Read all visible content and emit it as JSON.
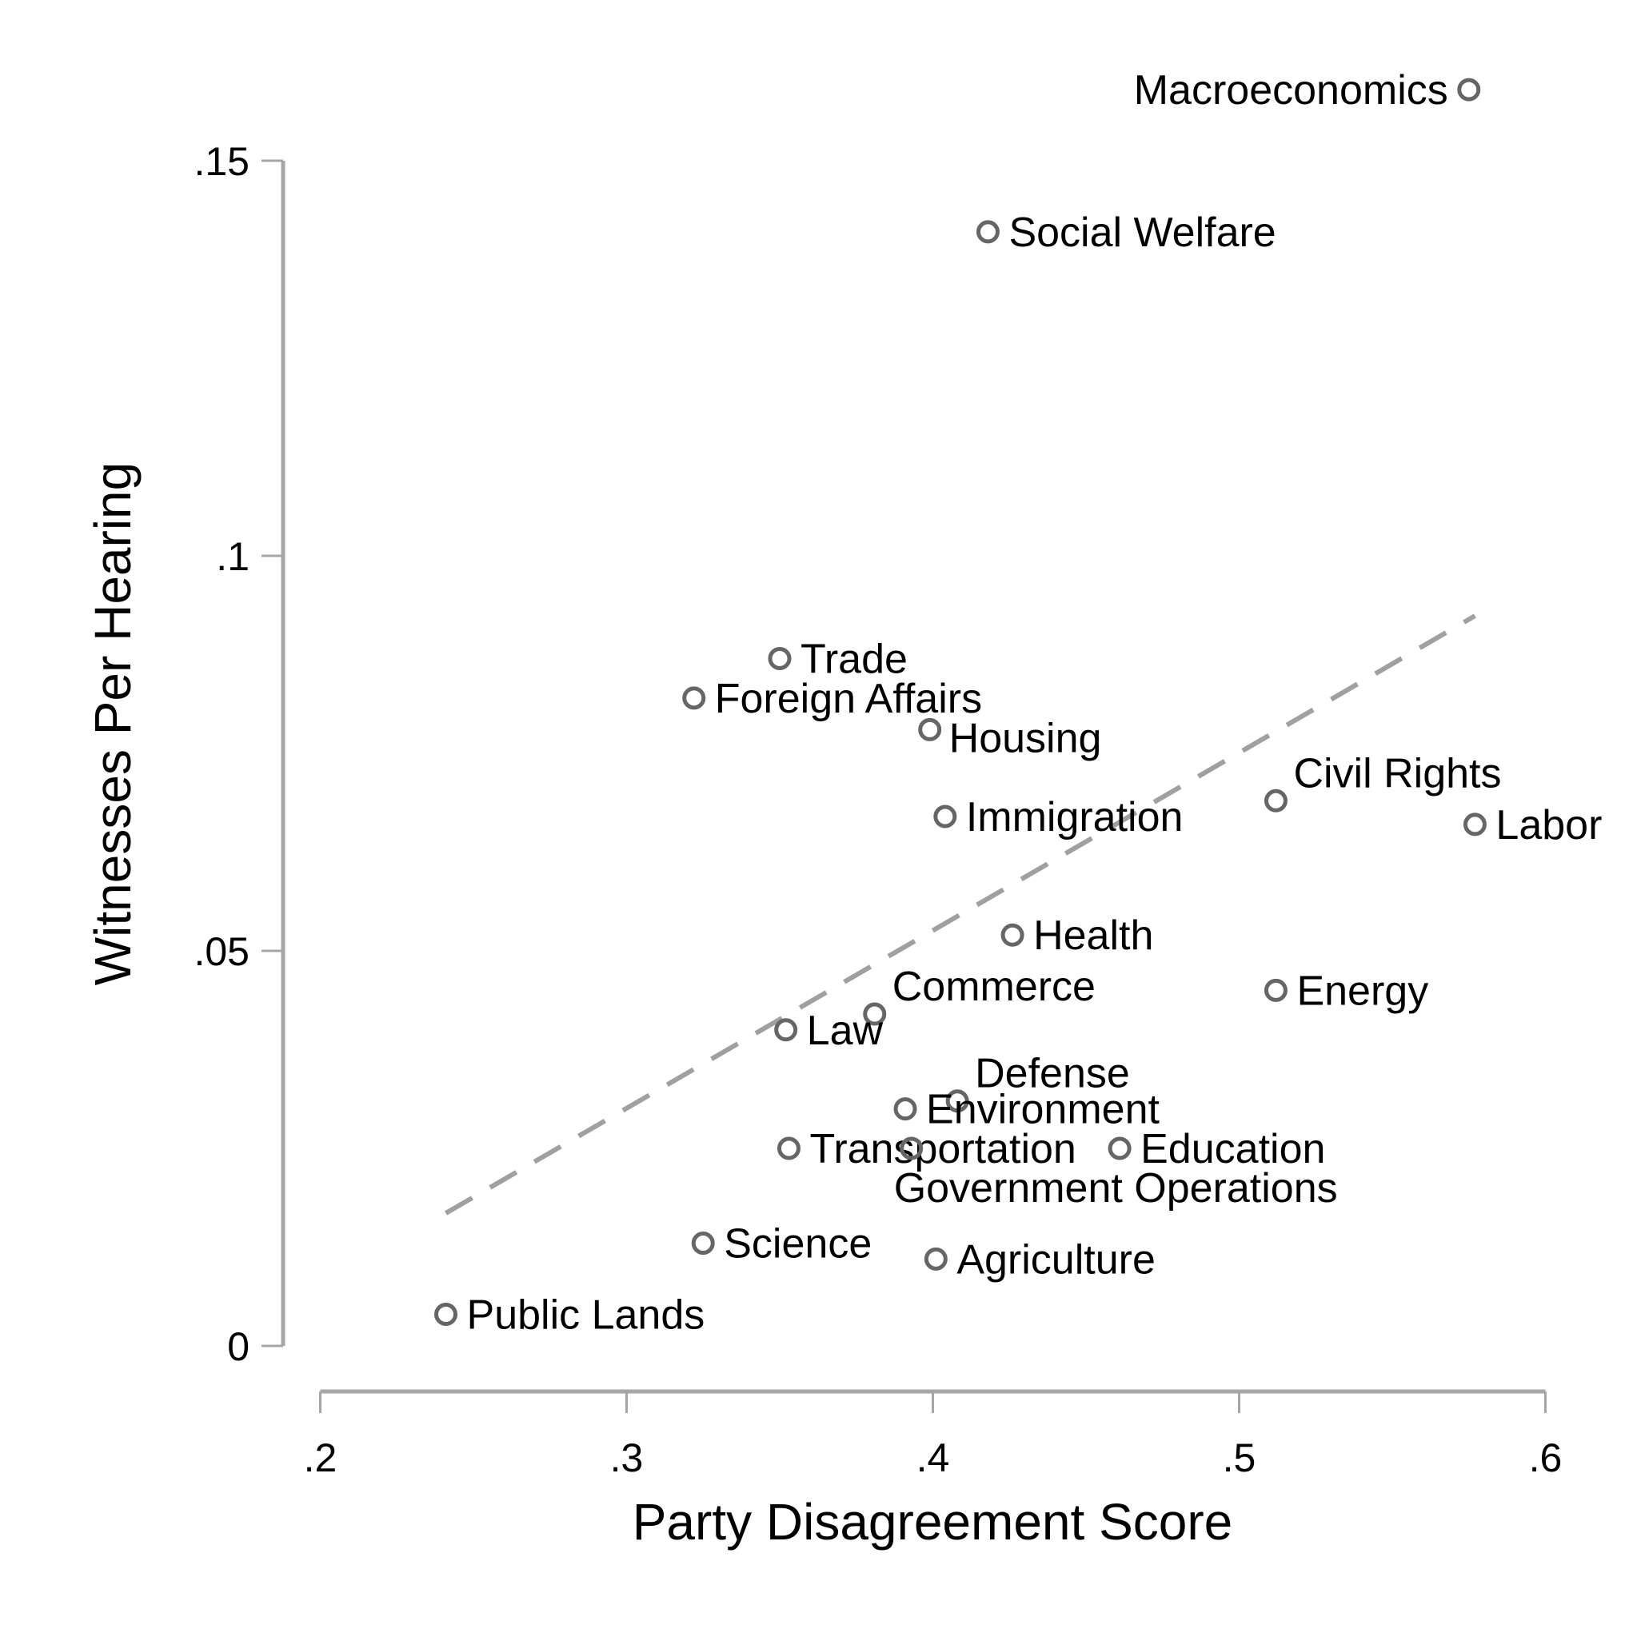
{
  "chart_data": {
    "type": "scatter",
    "title": "",
    "xlabel": "Party Disagreement Score",
    "ylabel": "Witnesses Per Hearing",
    "xlim": [
      0.2,
      0.6
    ],
    "ylim": [
      0,
      0.15
    ],
    "x_ticks": [
      {
        "value": 0.2,
        "label": ".2"
      },
      {
        "value": 0.3,
        "label": ".3"
      },
      {
        "value": 0.4,
        "label": ".4"
      },
      {
        "value": 0.5,
        "label": ".5"
      },
      {
        "value": 0.6,
        "label": ".6"
      }
    ],
    "y_ticks": [
      {
        "value": 0,
        "label": "0"
      },
      {
        "value": 0.05,
        "label": ".05"
      },
      {
        "value": 0.1,
        "label": ".1"
      },
      {
        "value": 0.15,
        "label": ".15"
      }
    ],
    "grid": false,
    "legend": null,
    "points": [
      {
        "label": "Macroeconomics",
        "x": 0.575,
        "y": 0.159,
        "pos": "left"
      },
      {
        "label": "Social Welfare",
        "x": 0.418,
        "y": 0.141,
        "pos": "right"
      },
      {
        "label": "Trade",
        "x": 0.35,
        "y": 0.087,
        "pos": "right"
      },
      {
        "label": "Foreign Affairs",
        "x": 0.322,
        "y": 0.082,
        "pos": "right"
      },
      {
        "label": "Housing",
        "x": 0.399,
        "y": 0.078,
        "pos": "right-low"
      },
      {
        "label": "Immigration",
        "x": 0.404,
        "y": 0.067,
        "pos": "right"
      },
      {
        "label": "Civil Rights",
        "x": 0.512,
        "y": 0.069,
        "pos": "upper-right"
      },
      {
        "label": "Labor",
        "x": 0.577,
        "y": 0.066,
        "pos": "right"
      },
      {
        "label": "Health",
        "x": 0.426,
        "y": 0.052,
        "pos": "right"
      },
      {
        "label": "Commerce",
        "x": 0.381,
        "y": 0.042,
        "pos": "upper-right"
      },
      {
        "label": "Energy",
        "x": 0.512,
        "y": 0.045,
        "pos": "right"
      },
      {
        "label": "Law",
        "x": 0.352,
        "y": 0.04,
        "pos": "right"
      },
      {
        "label": "Defense",
        "x": 0.408,
        "y": 0.031,
        "pos": "upper-right"
      },
      {
        "label": "Environment",
        "x": 0.391,
        "y": 0.03,
        "pos": "right"
      },
      {
        "label": "Transportation",
        "x": 0.353,
        "y": 0.025,
        "pos": "right"
      },
      {
        "label": "Government Operations",
        "x": 0.393,
        "y": 0.025,
        "pos": "below"
      },
      {
        "label": "Education",
        "x": 0.461,
        "y": 0.025,
        "pos": "right"
      },
      {
        "label": "Science",
        "x": 0.325,
        "y": 0.013,
        "pos": "right"
      },
      {
        "label": "Agriculture",
        "x": 0.401,
        "y": 0.011,
        "pos": "right"
      },
      {
        "label": "Public Lands",
        "x": 0.241,
        "y": 0.004,
        "pos": "right"
      }
    ],
    "fit_line": {
      "style": "dashed",
      "x0": 0.241,
      "y0": 0.0168,
      "x1": 0.577,
      "y1": 0.0924
    },
    "colors": {
      "marker": "#666666",
      "fit_line": "#a0a0a0",
      "axis": "#a6a6a6",
      "text": "#000000"
    }
  }
}
